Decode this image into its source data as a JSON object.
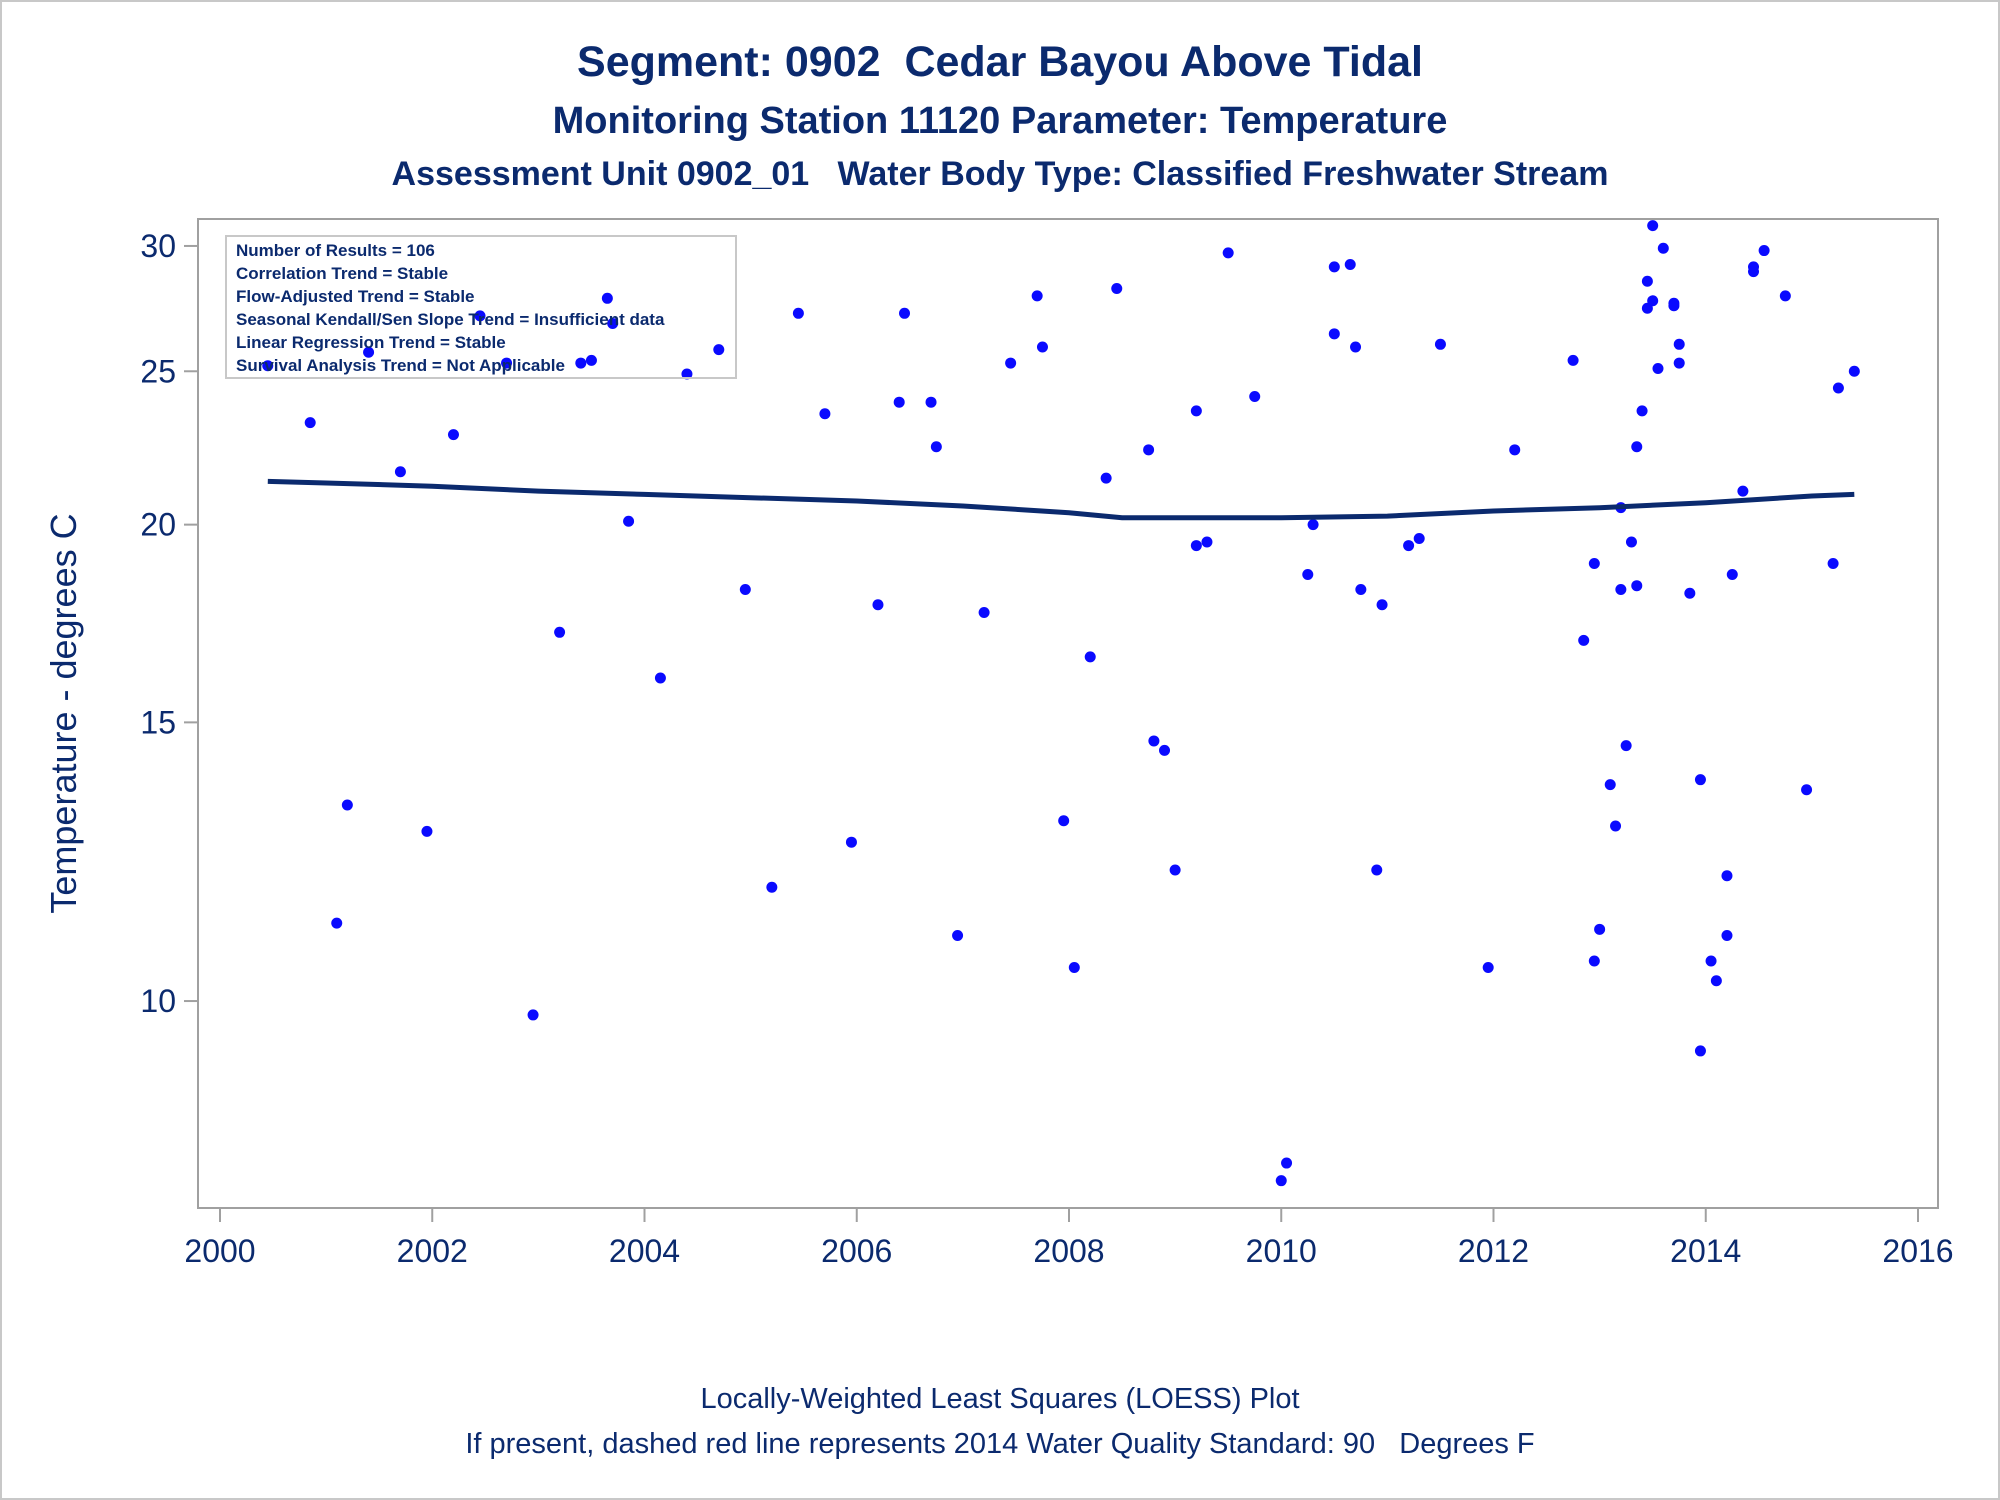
{
  "titles": {
    "line1": "Segment: 0902  Cedar Bayou Above Tidal",
    "line2": "Monitoring Station 11120 Parameter: Temperature",
    "line3": "Assessment Unit 0902_01   Water Body Type: Classified Freshwater Stream"
  },
  "footnotes": {
    "line1": "Locally-Weighted Least Squares (LOESS) Plot",
    "line2": "If present, dashed red line represents 2014 Water Quality Standard: 90   Degrees F"
  },
  "stats_box": [
    "Number of Results = 106",
    "Correlation Trend = Stable",
    "Flow-Adjusted Trend = Stable",
    "Seasonal Kendall/Sen Slope Trend = Insufficient data",
    "Linear Regression Trend = Stable",
    "Survival Analysis Trend = Not Applicable"
  ],
  "colors": {
    "text": "#0b2a6e",
    "points": "#0a0aff",
    "loess": "#0b2a6e",
    "axis": "#a0a0a0"
  },
  "chart_data": {
    "type": "scatter",
    "ylabel": "Temperature - degrees C",
    "xlabel": "",
    "y_scale": "log",
    "xlim": [
      2000,
      2016
    ],
    "ylim": [
      7.4,
      31.2
    ],
    "xticks": [
      2000,
      2002,
      2004,
      2006,
      2008,
      2010,
      2012,
      2014,
      2016
    ],
    "yticks": [
      10,
      15,
      20,
      25,
      30
    ],
    "legend": "top-left",
    "grid": false,
    "points": [
      [
        2000.45,
        25.2
      ],
      [
        2000.85,
        23.2
      ],
      [
        2001.1,
        11.2
      ],
      [
        2001.2,
        13.3
      ],
      [
        2001.4,
        25.7
      ],
      [
        2001.7,
        21.6
      ],
      [
        2001.95,
        12.8
      ],
      [
        2002.2,
        22.8
      ],
      [
        2002.45,
        27.1
      ],
      [
        2002.7,
        25.3
      ],
      [
        2002.95,
        9.8
      ],
      [
        2003.2,
        17.1
      ],
      [
        2003.4,
        25.3
      ],
      [
        2003.5,
        25.4
      ],
      [
        2003.65,
        27.8
      ],
      [
        2003.7,
        26.8
      ],
      [
        2003.85,
        20.1
      ],
      [
        2004.15,
        16.0
      ],
      [
        2004.4,
        24.9
      ],
      [
        2004.7,
        25.8
      ],
      [
        2004.95,
        18.2
      ],
      [
        2005.2,
        11.8
      ],
      [
        2005.45,
        27.2
      ],
      [
        2005.7,
        23.5
      ],
      [
        2005.95,
        12.6
      ],
      [
        2006.2,
        17.8
      ],
      [
        2006.4,
        23.9
      ],
      [
        2006.45,
        27.2
      ],
      [
        2006.7,
        23.9
      ],
      [
        2006.75,
        22.4
      ],
      [
        2006.95,
        11.0
      ],
      [
        2007.2,
        17.6
      ],
      [
        2007.45,
        25.3
      ],
      [
        2007.7,
        27.9
      ],
      [
        2007.75,
        25.9
      ],
      [
        2007.95,
        13.0
      ],
      [
        2008.05,
        10.5
      ],
      [
        2008.2,
        16.5
      ],
      [
        2008.35,
        21.4
      ],
      [
        2008.45,
        28.2
      ],
      [
        2008.75,
        22.3
      ],
      [
        2008.8,
        14.6
      ],
      [
        2008.9,
        14.4
      ],
      [
        2009.0,
        12.1
      ],
      [
        2009.2,
        19.4
      ],
      [
        2009.2,
        23.6
      ],
      [
        2009.3,
        19.5
      ],
      [
        2009.75,
        24.1
      ],
      [
        2009.5,
        29.7
      ],
      [
        2010.0,
        7.7
      ],
      [
        2010.05,
        7.9
      ],
      [
        2010.25,
        18.6
      ],
      [
        2010.3,
        20.0
      ],
      [
        2010.5,
        26.4
      ],
      [
        2010.5,
        29.1
      ],
      [
        2010.65,
        29.2
      ],
      [
        2010.7,
        25.9
      ],
      [
        2010.75,
        18.2
      ],
      [
        2010.9,
        12.1
      ],
      [
        2010.95,
        17.8
      ],
      [
        2011.2,
        19.4
      ],
      [
        2011.3,
        19.6
      ],
      [
        2011.5,
        26.0
      ],
      [
        2011.95,
        10.5
      ],
      [
        2012.2,
        22.3
      ],
      [
        2012.75,
        25.4
      ],
      [
        2012.85,
        16.9
      ],
      [
        2012.95,
        18.9
      ],
      [
        2012.95,
        10.6
      ],
      [
        2013.0,
        11.1
      ],
      [
        2013.1,
        13.7
      ],
      [
        2013.15,
        12.9
      ],
      [
        2013.2,
        18.2
      ],
      [
        2013.2,
        20.5
      ],
      [
        2013.25,
        14.5
      ],
      [
        2013.3,
        19.5
      ],
      [
        2013.35,
        18.3
      ],
      [
        2013.35,
        22.4
      ],
      [
        2013.4,
        23.6
      ],
      [
        2013.45,
        28.5
      ],
      [
        2013.45,
        27.4
      ],
      [
        2013.5,
        30.9
      ],
      [
        2013.5,
        27.7
      ],
      [
        2013.55,
        25.1
      ],
      [
        2013.6,
        29.9
      ],
      [
        2013.7,
        27.6
      ],
      [
        2013.7,
        27.5
      ],
      [
        2013.75,
        26.0
      ],
      [
        2013.75,
        25.3
      ],
      [
        2013.85,
        18.1
      ],
      [
        2013.95,
        13.8
      ],
      [
        2013.95,
        9.3
      ],
      [
        2014.05,
        10.6
      ],
      [
        2014.1,
        10.3
      ],
      [
        2014.2,
        12.0
      ],
      [
        2014.2,
        11.0
      ],
      [
        2014.25,
        18.6
      ],
      [
        2014.35,
        21.0
      ],
      [
        2014.45,
        28.9
      ],
      [
        2014.45,
        29.1
      ],
      [
        2014.55,
        29.8
      ],
      [
        2014.75,
        27.9
      ],
      [
        2014.95,
        13.6
      ],
      [
        2015.2,
        18.9
      ],
      [
        2015.25,
        24.4
      ],
      [
        2015.4,
        25.0
      ]
    ],
    "loess": [
      [
        2000.45,
        21.3
      ],
      [
        2001.0,
        21.25
      ],
      [
        2002.0,
        21.15
      ],
      [
        2003.0,
        21.0
      ],
      [
        2004.0,
        20.9
      ],
      [
        2005.0,
        20.8
      ],
      [
        2006.0,
        20.7
      ],
      [
        2007.0,
        20.55
      ],
      [
        2008.0,
        20.35
      ],
      [
        2008.5,
        20.2
      ],
      [
        2009.0,
        20.2
      ],
      [
        2010.0,
        20.2
      ],
      [
        2011.0,
        20.25
      ],
      [
        2012.0,
        20.4
      ],
      [
        2013.0,
        20.5
      ],
      [
        2014.0,
        20.65
      ],
      [
        2015.0,
        20.85
      ],
      [
        2015.4,
        20.9
      ]
    ]
  }
}
